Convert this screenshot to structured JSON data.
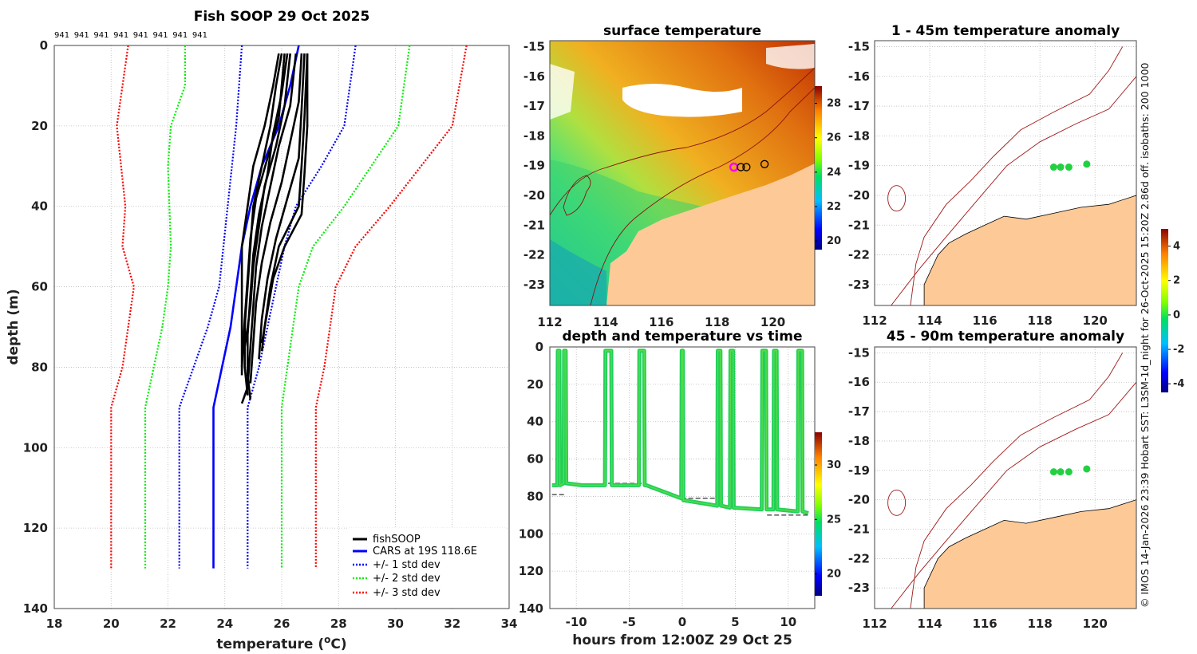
{
  "chart_data": [
    {
      "type": "line",
      "title": "Fish SOOP 29 Oct 2025",
      "profile_ids": [
        "941",
        "941",
        "941",
        "941",
        "941",
        "941",
        "941",
        "941"
      ],
      "xlabel": "temperature (°C)",
      "xlabel_main": "temperature (",
      "xlabel_sup": "o",
      "xlabel_end": "C)",
      "ylabel": "depth (m)",
      "xlim": [
        18,
        34
      ],
      "ylim": [
        0,
        140
      ],
      "xticks": [
        18,
        20,
        22,
        24,
        26,
        28,
        30,
        32,
        34
      ],
      "yticks": [
        0,
        20,
        40,
        60,
        80,
        100,
        120,
        140
      ],
      "legend": [
        "fishSOOP",
        "CARS at 19S 118.6E",
        "+/- 1 std dev",
        "+/- 2 std dev",
        "+/- 3 std dev"
      ],
      "legend_position": "bottom-right",
      "series": [
        {
          "name": "CARS at 19S 118.6E",
          "color": "#0000ff",
          "depth": [
            0,
            10,
            20,
            30,
            40,
            50,
            60,
            70,
            80,
            90,
            130
          ],
          "temp": [
            26.6,
            26.3,
            25.9,
            25.3,
            24.9,
            24.6,
            24.4,
            24.2,
            23.9,
            23.6,
            23.6
          ]
        },
        {
          "name": "-1 std",
          "color": "#0000ff",
          "depth": [
            0,
            20,
            40,
            60,
            70,
            80,
            90,
            130
          ],
          "temp": [
            24.6,
            24.4,
            24.1,
            23.8,
            23.4,
            22.9,
            22.4,
            22.4
          ]
        },
        {
          "name": "+1 std",
          "color": "#0000ff",
          "depth": [
            0,
            20,
            30,
            40,
            50,
            60,
            70,
            80,
            90,
            130
          ],
          "temp": [
            28.6,
            28.2,
            27.4,
            26.5,
            26.1,
            25.8,
            25.5,
            25.2,
            24.8,
            24.8
          ]
        },
        {
          "name": "-2 std",
          "color": "#00ee00",
          "depth": [
            0,
            10,
            20,
            30,
            50,
            60,
            70,
            80,
            90,
            130
          ],
          "temp": [
            22.6,
            22.6,
            22.1,
            22.0,
            22.1,
            22.0,
            21.8,
            21.5,
            21.2,
            21.2
          ]
        },
        {
          "name": "+2 std",
          "color": "#00ee00",
          "depth": [
            0,
            20,
            40,
            50,
            60,
            70,
            80,
            90,
            130
          ],
          "temp": [
            30.5,
            30.1,
            28.2,
            27.1,
            26.6,
            26.4,
            26.2,
            26.0,
            26.0
          ]
        },
        {
          "name": "-3 std",
          "color": "#ff0000",
          "depth": [
            0,
            20,
            40,
            50,
            60,
            70,
            80,
            90,
            130
          ],
          "temp": [
            20.6,
            20.2,
            20.5,
            20.4,
            20.8,
            20.6,
            20.4,
            20.0,
            20.0
          ]
        },
        {
          "name": "+3 std",
          "color": "#ff0000",
          "depth": [
            0,
            20,
            40,
            50,
            60,
            70,
            80,
            90,
            130
          ],
          "temp": [
            32.5,
            32.0,
            29.8,
            28.6,
            27.9,
            27.7,
            27.5,
            27.2,
            27.2
          ]
        }
      ],
      "fishSOOP_profiles": [
        {
          "depth": [
            2,
            10,
            20,
            30,
            40,
            50,
            60,
            70,
            80,
            87
          ],
          "temp": [
            26.0,
            25.8,
            25.6,
            25.3,
            25.0,
            24.9,
            24.8,
            24.7,
            24.7,
            24.8
          ]
        },
        {
          "depth": [
            2,
            12,
            22,
            32,
            42,
            52,
            62,
            72,
            82,
            88
          ],
          "temp": [
            26.2,
            26.0,
            25.7,
            25.5,
            25.2,
            25.0,
            24.9,
            24.8,
            24.8,
            24.9
          ]
        },
        {
          "depth": [
            2,
            15,
            25,
            35,
            45,
            55,
            65,
            75,
            85,
            89
          ],
          "temp": [
            26.5,
            26.3,
            25.9,
            25.6,
            25.3,
            25.1,
            25.0,
            24.9,
            24.8,
            24.6
          ]
        },
        {
          "depth": [
            2,
            14,
            24,
            34,
            44,
            54,
            64,
            74,
            84
          ],
          "temp": [
            26.7,
            26.6,
            26.3,
            26.0,
            25.6,
            25.3,
            25.1,
            25.0,
            24.9
          ]
        },
        {
          "depth": [
            2,
            16,
            28,
            38,
            48,
            58,
            68,
            78
          ],
          "temp": [
            26.8,
            26.7,
            26.6,
            26.2,
            25.8,
            25.5,
            25.3,
            25.2
          ]
        },
        {
          "depth": [
            2,
            18,
            30,
            40,
            50,
            60,
            70,
            76
          ],
          "temp": [
            26.9,
            26.8,
            26.7,
            26.6,
            25.9,
            25.6,
            25.4,
            25.3
          ]
        },
        {
          "depth": [
            2,
            20,
            32,
            42,
            50,
            58,
            66,
            74
          ],
          "temp": [
            26.9,
            26.9,
            26.8,
            26.7,
            26.1,
            25.7,
            25.5,
            25.3
          ]
        },
        {
          "depth": [
            2,
            15,
            25,
            35,
            45,
            55,
            65,
            75
          ],
          "temp": [
            26.3,
            26.1,
            25.8,
            25.4,
            25.2,
            25.0,
            24.9,
            24.7
          ]
        },
        {
          "depth": [
            2,
            18,
            28,
            38,
            48,
            58,
            68,
            80
          ],
          "temp": [
            26.1,
            25.9,
            25.5,
            25.1,
            24.9,
            24.8,
            24.7,
            24.6
          ]
        },
        {
          "depth": [
            2,
            10,
            20,
            30,
            40,
            50,
            60,
            70,
            82
          ],
          "temp": [
            25.9,
            25.7,
            25.4,
            25.0,
            24.8,
            24.6,
            24.6,
            24.6,
            24.6
          ]
        }
      ]
    },
    {
      "type": "heatmap",
      "title": "surface temperature",
      "xticks": [
        112,
        114,
        116,
        118,
        120
      ],
      "yticks": [
        -15,
        -16,
        -17,
        -18,
        -19,
        -20,
        -21,
        -22,
        -23
      ],
      "xlim": [
        112,
        121.5
      ],
      "ylim": [
        -23.7,
        -14.8
      ],
      "colorbar_ticks": [
        20,
        22,
        24,
        26,
        28
      ],
      "colorbar_range": [
        19.5,
        29
      ],
      "markers": [
        {
          "lon": 118.6,
          "lat": -19.05,
          "color": "#ff00ff"
        },
        {
          "lon": 118.85,
          "lat": -19.05,
          "color": "#000000"
        },
        {
          "lon": 119.05,
          "lat": -19.05,
          "color": "#000000"
        },
        {
          "lon": 119.7,
          "lat": -18.95,
          "color": "#000000"
        }
      ]
    },
    {
      "type": "scatter",
      "title": "depth and temperature vs time",
      "xlabel": "hours from 12:00Z 29 Oct 25",
      "xticks": [
        -10,
        -5,
        0,
        5,
        10
      ],
      "yticks": [
        0,
        20,
        40,
        60,
        80,
        100,
        120,
        140
      ],
      "xlim": [
        -12.5,
        12.5
      ],
      "ylim": [
        0,
        140
      ],
      "colorbar_ticks": [
        20,
        25,
        30
      ],
      "colorbar_range": [
        18,
        33
      ],
      "trace": [
        {
          "h": -12.3,
          "d": 74
        },
        {
          "h": -11.8,
          "d": 74
        },
        {
          "h": -11.75,
          "d": 2
        },
        {
          "h": -11.6,
          "d": 2
        },
        {
          "h": -11.55,
          "d": 74
        },
        {
          "h": -11.2,
          "d": 73
        },
        {
          "h": -11.15,
          "d": 2
        },
        {
          "h": -11.0,
          "d": 2
        },
        {
          "h": -10.95,
          "d": 73
        },
        {
          "h": -9.5,
          "d": 74
        },
        {
          "h": -7.3,
          "d": 74
        },
        {
          "h": -7.25,
          "d": 2
        },
        {
          "h": -6.7,
          "d": 2
        },
        {
          "h": -6.65,
          "d": 74
        },
        {
          "h": -4.1,
          "d": 74
        },
        {
          "h": -4.05,
          "d": 2
        },
        {
          "h": -3.6,
          "d": 2
        },
        {
          "h": -3.55,
          "d": 74
        },
        {
          "h": -3.4,
          "d": 74
        },
        {
          "h": -0.1,
          "d": 81
        },
        {
          "h": -0.05,
          "d": 2
        },
        {
          "h": 0.05,
          "d": 2
        },
        {
          "h": 0.1,
          "d": 82
        },
        {
          "h": 3.3,
          "d": 85
        },
        {
          "h": 3.35,
          "d": 2
        },
        {
          "h": 3.6,
          "d": 2
        },
        {
          "h": 3.65,
          "d": 85
        },
        {
          "h": 4.5,
          "d": 86
        },
        {
          "h": 4.55,
          "d": 2
        },
        {
          "h": 4.8,
          "d": 2
        },
        {
          "h": 4.85,
          "d": 86
        },
        {
          "h": 7.5,
          "d": 87
        },
        {
          "h": 7.55,
          "d": 2
        },
        {
          "h": 7.9,
          "d": 2
        },
        {
          "h": 7.95,
          "d": 87
        },
        {
          "h": 8.6,
          "d": 87
        },
        {
          "h": 8.65,
          "d": 2
        },
        {
          "h": 8.9,
          "d": 2
        },
        {
          "h": 8.95,
          "d": 87
        },
        {
          "h": 10.9,
          "d": 88
        },
        {
          "h": 10.95,
          "d": 2
        },
        {
          "h": 11.3,
          "d": 2
        },
        {
          "h": 11.35,
          "d": 88
        },
        {
          "h": 11.9,
          "d": 89
        }
      ],
      "bottom_depth_dashes": [
        {
          "h0": -12.3,
          "h1": -11.0,
          "d": 79
        },
        {
          "h0": -7.0,
          "h1": -3.4,
          "d": 73
        },
        {
          "h0": -0.1,
          "h1": 3.2,
          "d": 81
        },
        {
          "h0": 3.8,
          "h1": 7.3,
          "d": 86
        },
        {
          "h0": 8.0,
          "h1": 11.9,
          "d": 90
        }
      ]
    },
    {
      "type": "scatter",
      "title": "1 - 45m temperature anomaly",
      "xticks": [
        112,
        114,
        116,
        118,
        120
      ],
      "yticks": [
        -15,
        -16,
        -17,
        -18,
        -19,
        -20,
        -21,
        -22,
        -23
      ],
      "points": [
        {
          "lon": 118.5,
          "lat": -19.05
        },
        {
          "lon": 118.75,
          "lat": -19.05
        },
        {
          "lon": 119.05,
          "lat": -19.05
        },
        {
          "lon": 119.7,
          "lat": -18.95
        }
      ]
    },
    {
      "type": "scatter",
      "title": "45 - 90m temperature anomaly",
      "xticks": [
        112,
        114,
        116,
        118,
        120
      ],
      "yticks": [
        -15,
        -16,
        -17,
        -18,
        -19,
        -20,
        -21,
        -22,
        -23
      ],
      "points": [
        {
          "lon": 118.5,
          "lat": -19.05
        },
        {
          "lon": 118.75,
          "lat": -19.05
        },
        {
          "lon": 119.05,
          "lat": -19.05
        },
        {
          "lon": 119.7,
          "lat": -18.95
        }
      ]
    }
  ],
  "anomaly_colorbar": {
    "ticks": [
      4,
      2,
      0,
      -2,
      -4
    ],
    "range": [
      -4.5,
      5
    ]
  },
  "side_caption": "© IMOS 14-Jan-2026 23:39 Hobart SST: L3SM-1d_night for 26-Oct-2025 15:20Z 2.86d off. isobaths: 200  1000"
}
